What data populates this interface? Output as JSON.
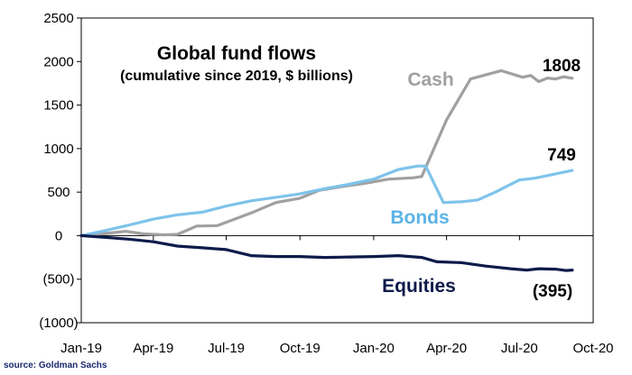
{
  "chart_data": {
    "type": "line",
    "title": "Global fund flows",
    "subtitle": "(cumulative since 2019, $ billions)",
    "xlabel": "",
    "ylabel": "",
    "x_ticks": [
      "Jan-19",
      "Apr-19",
      "Jul-19",
      "Oct-19",
      "Jan-20",
      "Apr-20",
      "Jul-20",
      "Oct-20"
    ],
    "y_ticks": [
      2500,
      2000,
      1500,
      1000,
      500,
      0,
      -500,
      -1000
    ],
    "y_tick_labels": [
      "2500",
      "2000",
      "1500",
      "1000",
      "500",
      "0",
      "(500)",
      "(1000)"
    ],
    "ylim": [
      -1000,
      2500
    ],
    "xlim": [
      "2019-01-01",
      "2020-10-01"
    ],
    "grid": false,
    "legend": "none",
    "series": [
      {
        "name": "Cash",
        "color": "#a0a0a0",
        "end_label": "1808",
        "points": [
          [
            "2019-01-01",
            0
          ],
          [
            "2019-02-05",
            30
          ],
          [
            "2019-02-25",
            50
          ],
          [
            "2019-03-20",
            20
          ],
          [
            "2019-04-15",
            10
          ],
          [
            "2019-05-01",
            15
          ],
          [
            "2019-05-25",
            110
          ],
          [
            "2019-06-20",
            115
          ],
          [
            "2019-08-01",
            260
          ],
          [
            "2019-09-01",
            380
          ],
          [
            "2019-10-01",
            430
          ],
          [
            "2019-10-25",
            520
          ],
          [
            "2019-11-20",
            560
          ],
          [
            "2019-12-20",
            600
          ],
          [
            "2020-01-20",
            650
          ],
          [
            "2020-02-20",
            665
          ],
          [
            "2020-03-01",
            680
          ],
          [
            "2020-04-01",
            1330
          ],
          [
            "2020-05-01",
            1800
          ],
          [
            "2020-06-08",
            1895
          ],
          [
            "2020-07-05",
            1820
          ],
          [
            "2020-07-15",
            1840
          ],
          [
            "2020-07-25",
            1770
          ],
          [
            "2020-08-05",
            1810
          ],
          [
            "2020-08-15",
            1800
          ],
          [
            "2020-08-25",
            1825
          ],
          [
            "2020-09-05",
            1808
          ]
        ]
      },
      {
        "name": "Bonds",
        "color": "#7ec3ea",
        "end_label": "749",
        "points": [
          [
            "2019-01-01",
            0
          ],
          [
            "2019-02-01",
            60
          ],
          [
            "2019-03-01",
            120
          ],
          [
            "2019-04-01",
            190
          ],
          [
            "2019-05-01",
            240
          ],
          [
            "2019-06-01",
            270
          ],
          [
            "2019-07-01",
            340
          ],
          [
            "2019-08-01",
            400
          ],
          [
            "2019-09-01",
            440
          ],
          [
            "2019-10-01",
            480
          ],
          [
            "2019-11-01",
            540
          ],
          [
            "2019-12-01",
            590
          ],
          [
            "2020-01-01",
            650
          ],
          [
            "2020-02-01",
            760
          ],
          [
            "2020-02-25",
            800
          ],
          [
            "2020-03-06",
            800
          ],
          [
            "2020-03-28",
            380
          ],
          [
            "2020-04-20",
            390
          ],
          [
            "2020-05-10",
            410
          ],
          [
            "2020-06-01",
            500
          ],
          [
            "2020-07-01",
            640
          ],
          [
            "2020-07-20",
            660
          ],
          [
            "2020-08-10",
            700
          ],
          [
            "2020-09-05",
            749
          ]
        ]
      },
      {
        "name": "Equities",
        "color": "#0d1b4a",
        "end_label": "(395)",
        "points": [
          [
            "2019-01-01",
            0
          ],
          [
            "2019-02-01",
            -20
          ],
          [
            "2019-03-01",
            -40
          ],
          [
            "2019-04-01",
            -70
          ],
          [
            "2019-05-01",
            -120
          ],
          [
            "2019-06-01",
            -140
          ],
          [
            "2019-07-01",
            -160
          ],
          [
            "2019-08-01",
            -230
          ],
          [
            "2019-09-01",
            -240
          ],
          [
            "2019-10-01",
            -240
          ],
          [
            "2019-11-01",
            -250
          ],
          [
            "2019-12-01",
            -245
          ],
          [
            "2020-01-01",
            -240
          ],
          [
            "2020-02-01",
            -230
          ],
          [
            "2020-03-01",
            -250
          ],
          [
            "2020-03-20",
            -300
          ],
          [
            "2020-04-20",
            -310
          ],
          [
            "2020-05-20",
            -350
          ],
          [
            "2020-06-20",
            -380
          ],
          [
            "2020-07-10",
            -395
          ],
          [
            "2020-07-25",
            -380
          ],
          [
            "2020-08-15",
            -385
          ],
          [
            "2020-08-28",
            -400
          ],
          [
            "2020-09-05",
            -395
          ]
        ]
      }
    ]
  },
  "source": "source: Goldman Sachs"
}
